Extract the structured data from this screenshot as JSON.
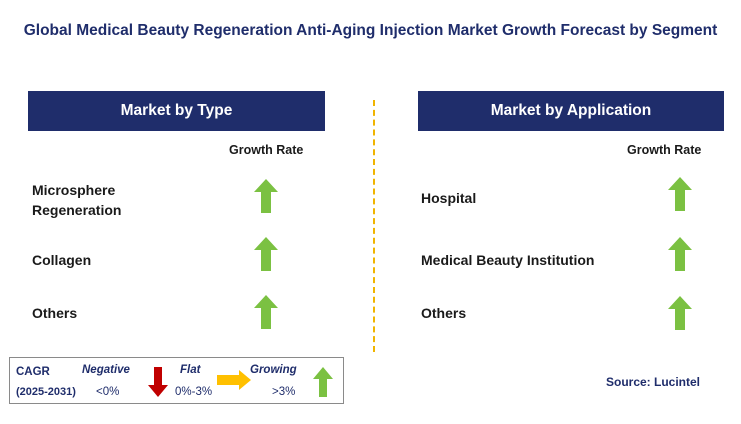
{
  "title": "Global Medical Beauty Regeneration Anti-Aging Injection Market Growth Forecast by Segment",
  "colors": {
    "header_bg": "#1f2d6b",
    "growing": "#7bc142",
    "negative": "#c00000",
    "flat": "#ffc000",
    "divider": "#f0b400"
  },
  "chart_data": {
    "type": "table",
    "panels": [
      {
        "header": "Market by Type",
        "column": "Growth Rate",
        "rows": [
          {
            "label": "Microsphere Regeneration",
            "label_lines": [
              "Microsphere",
              "Regeneration"
            ],
            "trend": "growing",
            "icon": "up-arrow-icon"
          },
          {
            "label": "Collagen",
            "label_lines": [
              "Collagen"
            ],
            "trend": "growing",
            "icon": "up-arrow-icon"
          },
          {
            "label": "Others",
            "label_lines": [
              "Others"
            ],
            "trend": "growing",
            "icon": "up-arrow-icon"
          }
        ]
      },
      {
        "header": "Market by Application",
        "column": "Growth Rate",
        "rows": [
          {
            "label": "Hospital",
            "label_lines": [
              "Hospital"
            ],
            "trend": "growing",
            "icon": "up-arrow-icon"
          },
          {
            "label": "Medical Beauty Institution",
            "label_lines": [
              "Medical Beauty Institution"
            ],
            "trend": "growing",
            "icon": "up-arrow-icon"
          },
          {
            "label": "Others",
            "label_lines": [
              "Others"
            ],
            "trend": "growing",
            "icon": "up-arrow-icon"
          }
        ]
      }
    ]
  },
  "legend": {
    "cagr_label": "CAGR",
    "period": "(2025-2031)",
    "negative": {
      "label": "Negative",
      "range": "<0%"
    },
    "flat": {
      "label": "Flat",
      "range": "0%-3%"
    },
    "growing": {
      "label": "Growing",
      "range": ">3%"
    }
  },
  "source": "Source: Lucintel"
}
